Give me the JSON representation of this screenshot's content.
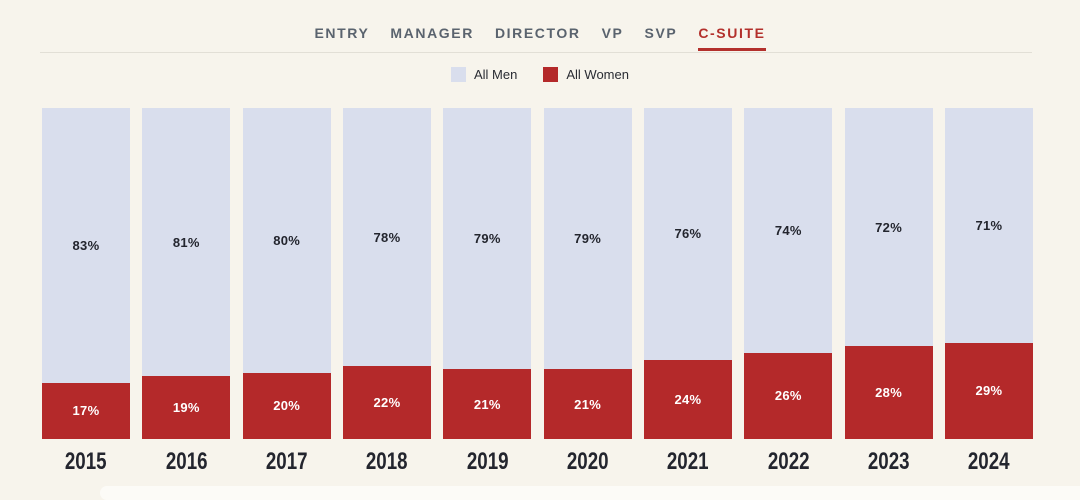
{
  "tabs": {
    "items": [
      {
        "label": "ENTRY",
        "active": false
      },
      {
        "label": "MANAGER",
        "active": false
      },
      {
        "label": "DIRECTOR",
        "active": false
      },
      {
        "label": "VP",
        "active": false
      },
      {
        "label": "SVP",
        "active": false
      },
      {
        "label": "C-SUITE",
        "active": true
      }
    ]
  },
  "legend": {
    "items": [
      {
        "label": "All Men",
        "color": "#d9deed"
      },
      {
        "label": "All Women",
        "color": "#b4292a"
      }
    ]
  },
  "colors": {
    "background": "#f7f4ec",
    "men_segment": "#d9deed",
    "women_segment": "#b4292a",
    "tab_inactive": "#5a636e",
    "tab_active": "#b3302c",
    "men_value_text": "#23252e",
    "women_value_text": "#ffffff",
    "year_text": "#23252e",
    "divider": "#e2dfd6"
  },
  "chart_data": {
    "type": "bar",
    "stacked": true,
    "categories": [
      "2015",
      "2016",
      "2017",
      "2018",
      "2019",
      "2020",
      "2021",
      "2022",
      "2023",
      "2024"
    ],
    "series": [
      {
        "name": "All Men",
        "color": "#d9deed",
        "values": [
          83,
          81,
          80,
          78,
          79,
          79,
          76,
          74,
          72,
          71
        ]
      },
      {
        "name": "All Women",
        "color": "#b4292a",
        "values": [
          17,
          19,
          20,
          22,
          21,
          21,
          24,
          26,
          28,
          29
        ]
      }
    ],
    "unit": "%",
    "ylim": [
      0,
      100
    ],
    "value_labels": "inside-center",
    "legend_position": "top-center",
    "grid": false,
    "xlabel": "",
    "ylabel": ""
  }
}
